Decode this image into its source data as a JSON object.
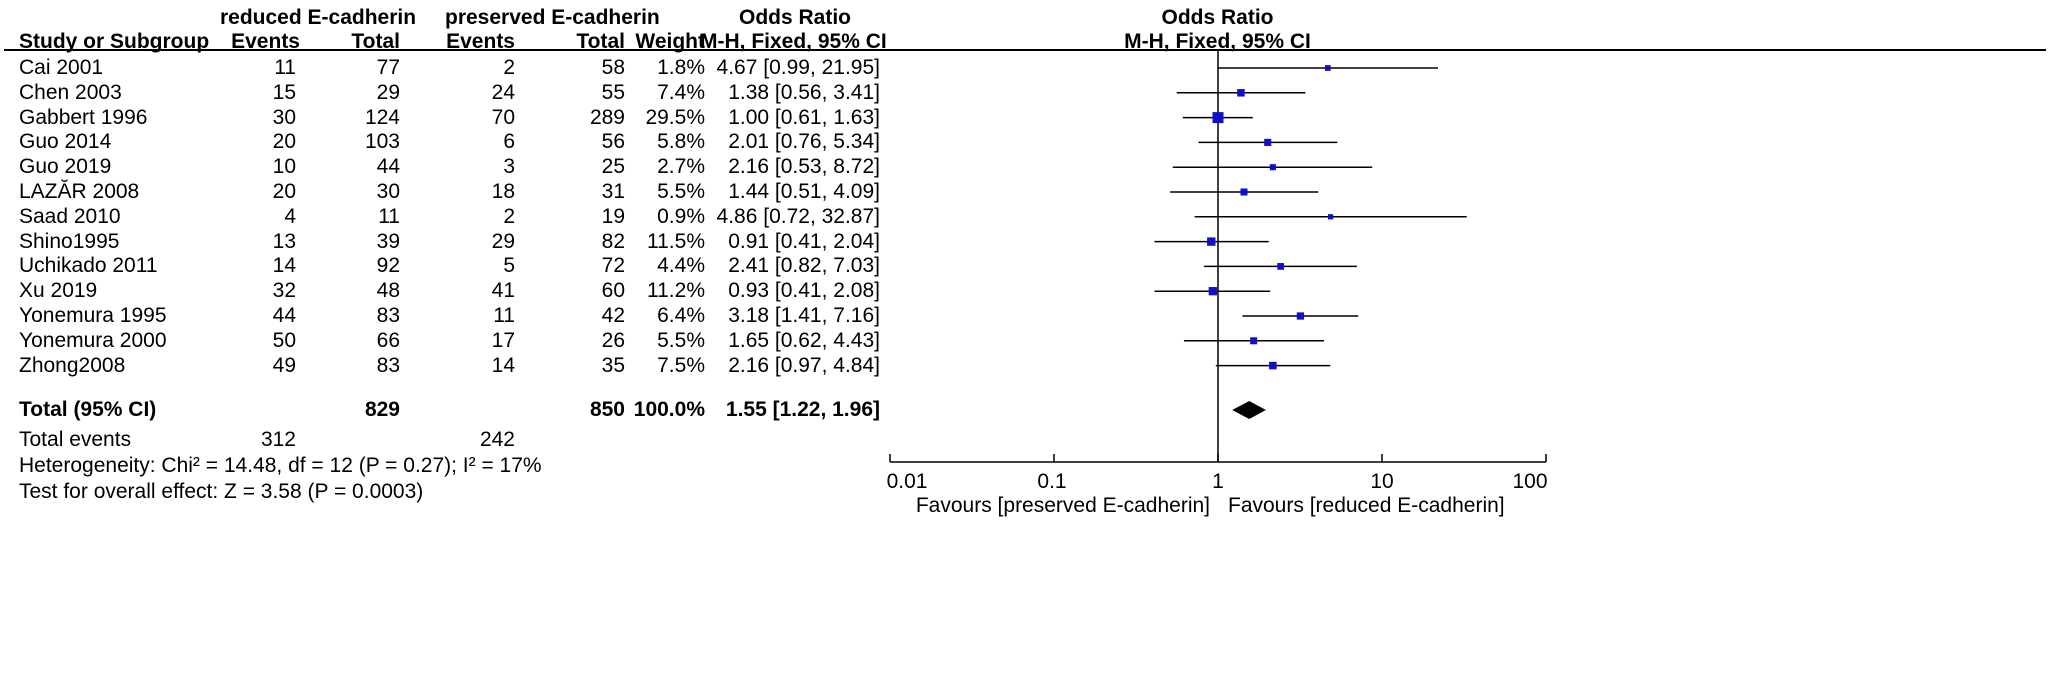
{
  "header": {
    "group1": "reduced E-cadherin",
    "group2": "preserved E-cadherin",
    "odds_ratio": "Odds Ratio",
    "plot_title": "Odds Ratio",
    "columns": {
      "study": "Study or Subgroup",
      "events1": "Events",
      "total1": "Total",
      "events2": "Events",
      "total2": "Total",
      "weight": "Weight",
      "method": "M-H, Fixed, 95% CI",
      "plot_method": "M-H, Fixed, 95% CI"
    }
  },
  "studies": [
    {
      "name": "Cai 2001",
      "e1": "11",
      "t1": "77",
      "e2": "2",
      "t2": "58",
      "weight": "1.8%",
      "ci": "4.67 [0.99, 21.95]"
    },
    {
      "name": "Chen 2003",
      "e1": "15",
      "t1": "29",
      "e2": "24",
      "t2": "55",
      "weight": "7.4%",
      "ci": "1.38 [0.56, 3.41]"
    },
    {
      "name": "Gabbert 1996",
      "e1": "30",
      "t1": "124",
      "e2": "70",
      "t2": "289",
      "weight": "29.5%",
      "ci": "1.00 [0.61, 1.63]"
    },
    {
      "name": "Guo 2014",
      "e1": "20",
      "t1": "103",
      "e2": "6",
      "t2": "56",
      "weight": "5.8%",
      "ci": "2.01 [0.76, 5.34]"
    },
    {
      "name": "Guo 2019",
      "e1": "10",
      "t1": "44",
      "e2": "3",
      "t2": "25",
      "weight": "2.7%",
      "ci": "2.16 [0.53, 8.72]"
    },
    {
      "name": "LAZĂR 2008",
      "e1": "20",
      "t1": "30",
      "e2": "18",
      "t2": "31",
      "weight": "5.5%",
      "ci": "1.44 [0.51, 4.09]"
    },
    {
      "name": "Saad 2010",
      "e1": "4",
      "t1": "11",
      "e2": "2",
      "t2": "19",
      "weight": "0.9%",
      "ci": "4.86 [0.72, 32.87]"
    },
    {
      "name": "Shino1995",
      "e1": "13",
      "t1": "39",
      "e2": "29",
      "t2": "82",
      "weight": "11.5%",
      "ci": "0.91 [0.41, 2.04]"
    },
    {
      "name": "Uchikado  2011",
      "e1": "14",
      "t1": "92",
      "e2": "5",
      "t2": "72",
      "weight": "4.4%",
      "ci": "2.41 [0.82, 7.03]"
    },
    {
      "name": "Xu 2019",
      "e1": "32",
      "t1": "48",
      "e2": "41",
      "t2": "60",
      "weight": "11.2%",
      "ci": "0.93 [0.41, 2.08]"
    },
    {
      "name": "Yonemura 1995",
      "e1": "44",
      "t1": "83",
      "e2": "11",
      "t2": "42",
      "weight": "6.4%",
      "ci": "3.18 [1.41, 7.16]"
    },
    {
      "name": "Yonemura 2000",
      "e1": "50",
      "t1": "66",
      "e2": "17",
      "t2": "26",
      "weight": "5.5%",
      "ci": "1.65 [0.62, 4.43]"
    },
    {
      "name": "Zhong2008",
      "e1": "49",
      "t1": "83",
      "e2": "14",
      "t2": "35",
      "weight": "7.5%",
      "ci": "2.16 [0.97, 4.84]"
    }
  ],
  "total": {
    "label": "Total (95% CI)",
    "t1": "829",
    "t2": "850",
    "weight": "100.0%",
    "ci": "1.55 [1.22, 1.96]"
  },
  "total_events": {
    "label": "Total events",
    "e1": "312",
    "e2": "242"
  },
  "heterogeneity": "Heterogeneity: Chi² = 14.48, df = 12 (P = 0.27); I² = 17%",
  "overall_effect": "Test for overall effect: Z = 3.58 (P = 0.0003)",
  "colors": {
    "marker": "#1010c8",
    "line": "#000000",
    "diamond": "#000000"
  },
  "chart_data": {
    "type": "forest",
    "title": "Odds Ratio",
    "subtitle": "M-H, Fixed, 95% CI",
    "scale": "log",
    "xlim": [
      0.01,
      100
    ],
    "ticks": [
      0.01,
      0.1,
      1,
      10,
      100
    ],
    "tick_labels": [
      "0.01",
      "0.1",
      "1",
      "10",
      "100"
    ],
    "xlabel_left": "Favours [preserved E-cadherin]",
    "xlabel_right": "Favours [reduced E-cadherin]",
    "points": [
      {
        "study": "Cai 2001",
        "or": 4.67,
        "lo": 0.99,
        "hi": 21.95,
        "weight": 1.8
      },
      {
        "study": "Chen 2003",
        "or": 1.38,
        "lo": 0.56,
        "hi": 3.41,
        "weight": 7.4
      },
      {
        "study": "Gabbert 1996",
        "or": 1.0,
        "lo": 0.61,
        "hi": 1.63,
        "weight": 29.5
      },
      {
        "study": "Guo 2014",
        "or": 2.01,
        "lo": 0.76,
        "hi": 5.34,
        "weight": 5.8
      },
      {
        "study": "Guo 2019",
        "or": 2.16,
        "lo": 0.53,
        "hi": 8.72,
        "weight": 2.7
      },
      {
        "study": "LAZĂR 2008",
        "or": 1.44,
        "lo": 0.51,
        "hi": 4.09,
        "weight": 5.5
      },
      {
        "study": "Saad 2010",
        "or": 4.86,
        "lo": 0.72,
        "hi": 32.87,
        "weight": 0.9
      },
      {
        "study": "Shino1995",
        "or": 0.91,
        "lo": 0.41,
        "hi": 2.04,
        "weight": 11.5
      },
      {
        "study": "Uchikado  2011",
        "or": 2.41,
        "lo": 0.82,
        "hi": 7.03,
        "weight": 4.4
      },
      {
        "study": "Xu 2019",
        "or": 0.93,
        "lo": 0.41,
        "hi": 2.08,
        "weight": 11.2
      },
      {
        "study": "Yonemura 1995",
        "or": 3.18,
        "lo": 1.41,
        "hi": 7.16,
        "weight": 6.4
      },
      {
        "study": "Yonemura 2000",
        "or": 1.65,
        "lo": 0.62,
        "hi": 4.43,
        "weight": 5.5
      },
      {
        "study": "Zhong2008",
        "or": 2.16,
        "lo": 0.97,
        "hi": 4.84,
        "weight": 7.5
      }
    ],
    "summary": {
      "or": 1.55,
      "lo": 1.22,
      "hi": 1.96
    }
  }
}
